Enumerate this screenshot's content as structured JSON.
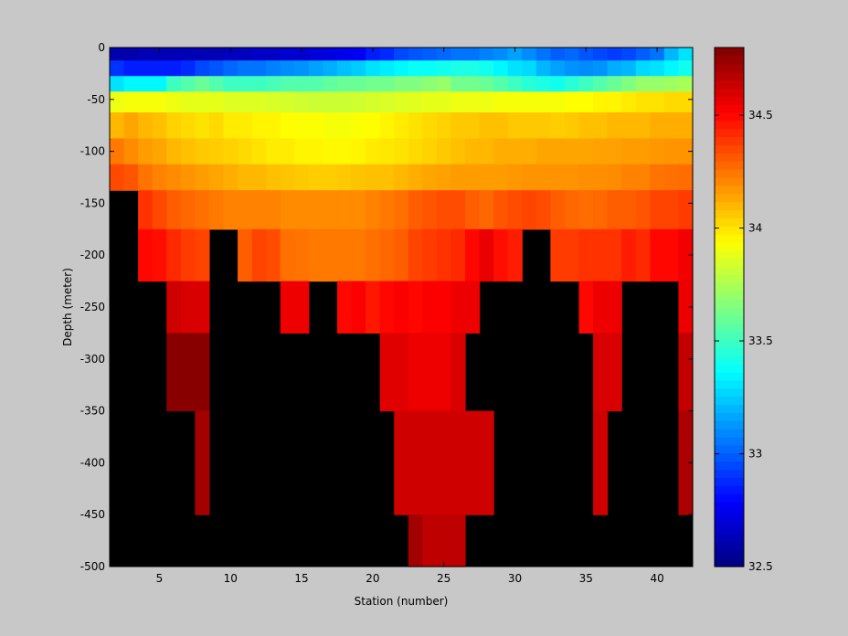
{
  "chart_data": {
    "type": "heatmap",
    "title": "",
    "xlabel": "Station (number)",
    "ylabel": "Depth (meter)",
    "xlim": [
      1.5,
      42.5
    ],
    "ylim": [
      -500,
      0
    ],
    "xticks": [
      5,
      10,
      15,
      20,
      25,
      30,
      35,
      40
    ],
    "yticks": [
      0,
      -50,
      -100,
      -150,
      -200,
      -250,
      -300,
      -350,
      -400,
      -450,
      -500
    ],
    "x_range": [
      2,
      42
    ],
    "depth_levels": [
      -5,
      -20,
      -35,
      -50,
      -75,
      -100,
      -125,
      -150,
      -200,
      -250,
      -300,
      -400,
      -500
    ],
    "no_data_color": "#000000",
    "colorbar": {
      "min": 32.5,
      "max": 34.8,
      "colormap": "jet",
      "ticks": [
        32.5,
        33,
        33.5,
        34,
        34.5
      ]
    },
    "salinity_by_depth": [
      [
        32.6,
        32.6,
        32.62,
        32.62,
        32.62,
        32.62,
        32.62,
        32.62,
        32.64,
        32.64,
        32.66,
        32.66,
        32.68,
        32.68,
        32.7,
        32.72,
        32.74,
        32.76,
        32.85,
        32.88,
        32.95,
        32.98,
        33.0,
        33.02,
        33.05,
        33.05,
        33.08,
        33.1,
        33.15,
        33.1,
        33.05,
        33.0,
        33.02,
        32.98,
        32.95,
        32.92,
        32.95,
        33.0,
        33.05,
        33.2,
        33.3
      ],
      [
        32.9,
        32.85,
        32.85,
        32.85,
        32.85,
        32.88,
        32.95,
        32.98,
        33.02,
        33.05,
        33.05,
        33.08,
        33.1,
        33.12,
        33.15,
        33.18,
        33.22,
        33.25,
        33.3,
        33.32,
        33.35,
        33.38,
        33.38,
        33.4,
        33.42,
        33.42,
        33.4,
        33.35,
        33.3,
        33.28,
        33.2,
        33.15,
        33.12,
        33.1,
        33.12,
        33.18,
        33.2,
        33.28,
        33.3,
        33.35,
        33.4
      ],
      [
        33.3,
        33.35,
        33.35,
        33.35,
        33.5,
        33.55,
        33.6,
        33.55,
        33.5,
        33.5,
        33.5,
        33.52,
        33.55,
        33.55,
        33.55,
        33.58,
        33.6,
        33.6,
        33.62,
        33.62,
        33.65,
        33.65,
        33.68,
        33.7,
        33.62,
        33.62,
        33.6,
        33.55,
        33.5,
        33.45,
        33.42,
        33.4,
        33.45,
        33.5,
        33.55,
        33.6,
        33.65,
        33.7,
        33.7,
        33.72,
        33.74
      ],
      [
        33.9,
        33.92,
        33.92,
        33.92,
        33.9,
        33.88,
        33.88,
        33.88,
        33.86,
        33.86,
        33.86,
        33.85,
        33.84,
        33.83,
        33.82,
        33.82,
        33.82,
        33.83,
        33.84,
        33.85,
        33.86,
        33.87,
        33.88,
        33.88,
        33.9,
        33.9,
        33.9,
        33.92,
        33.92,
        33.92,
        33.92,
        33.92,
        33.94,
        33.94,
        33.96,
        33.96,
        33.98,
        34.0,
        34.0,
        34.02,
        34.02
      ],
      [
        34.1,
        34.14,
        34.1,
        34.08,
        34.04,
        34.02,
        34.0,
        34.02,
        33.98,
        33.98,
        33.96,
        33.96,
        33.94,
        33.93,
        33.93,
        33.92,
        33.92,
        33.93,
        33.94,
        33.96,
        33.98,
        34.0,
        34.02,
        34.04,
        34.06,
        34.06,
        34.08,
        34.08,
        34.06,
        34.06,
        34.06,
        34.05,
        34.06,
        34.08,
        34.08,
        34.1,
        34.1,
        34.1,
        34.12,
        34.12,
        34.12
      ],
      [
        34.24,
        34.2,
        34.16,
        34.14,
        34.1,
        34.08,
        34.06,
        34.05,
        34.04,
        34.02,
        34.0,
        33.98,
        33.98,
        33.96,
        33.96,
        33.95,
        33.95,
        33.96,
        33.98,
        33.99,
        34.0,
        34.02,
        34.04,
        34.06,
        34.08,
        34.1,
        34.1,
        34.12,
        34.12,
        34.12,
        34.14,
        34.14,
        34.14,
        34.14,
        34.15,
        34.15,
        34.16,
        34.16,
        34.17,
        34.18,
        34.18
      ],
      [
        34.35,
        34.32,
        34.25,
        34.22,
        34.2,
        34.18,
        34.16,
        34.14,
        34.12,
        34.1,
        34.1,
        34.08,
        34.07,
        34.06,
        34.05,
        34.05,
        34.06,
        34.07,
        34.08,
        34.08,
        34.1,
        34.12,
        34.14,
        34.15,
        34.16,
        34.16,
        34.16,
        34.16,
        34.17,
        34.18,
        34.18,
        34.18,
        34.18,
        34.19,
        34.19,
        34.2,
        34.22,
        34.22,
        34.25,
        34.26,
        34.27
      ],
      [
        null,
        null,
        34.4,
        34.35,
        34.3,
        34.28,
        34.26,
        34.24,
        34.22,
        34.22,
        34.22,
        34.22,
        34.2,
        34.2,
        34.2,
        34.2,
        34.2,
        34.2,
        34.22,
        34.24,
        34.26,
        34.3,
        34.32,
        34.34,
        34.34,
        34.3,
        34.28,
        34.32,
        34.34,
        34.36,
        34.34,
        34.3,
        34.28,
        34.27,
        34.28,
        34.3,
        34.3,
        34.32,
        34.36,
        34.36,
        34.38
      ],
      [
        null,
        null,
        34.5,
        34.48,
        34.42,
        34.38,
        34.36,
        null,
        null,
        34.3,
        34.36,
        34.34,
        34.26,
        34.25,
        34.24,
        34.24,
        34.24,
        34.24,
        34.26,
        34.28,
        34.3,
        34.36,
        34.38,
        34.4,
        34.42,
        34.5,
        34.56,
        34.48,
        34.45,
        null,
        null,
        34.38,
        34.38,
        34.4,
        34.4,
        34.4,
        34.45,
        34.42,
        34.5,
        34.5,
        34.54
      ],
      [
        null,
        null,
        null,
        null,
        34.62,
        34.6,
        34.6,
        null,
        null,
        null,
        null,
        null,
        34.55,
        34.55,
        null,
        null,
        34.5,
        34.52,
        34.46,
        34.5,
        34.52,
        34.5,
        34.52,
        34.52,
        34.55,
        34.55,
        null,
        null,
        null,
        null,
        null,
        null,
        null,
        34.5,
        34.55,
        34.55,
        null,
        null,
        null,
        null,
        34.55
      ],
      [
        null,
        null,
        null,
        null,
        34.78,
        34.78,
        34.78,
        null,
        null,
        null,
        null,
        null,
        null,
        null,
        null,
        null,
        null,
        null,
        null,
        34.58,
        34.58,
        34.55,
        34.55,
        34.55,
        34.6,
        null,
        null,
        null,
        null,
        null,
        null,
        null,
        null,
        null,
        34.6,
        34.6,
        null,
        null,
        null,
        null,
        34.65
      ],
      [
        null,
        null,
        null,
        null,
        null,
        null,
        34.72,
        null,
        null,
        null,
        null,
        null,
        null,
        null,
        null,
        null,
        null,
        null,
        null,
        null,
        34.62,
        34.62,
        34.62,
        34.62,
        34.62,
        34.62,
        34.62,
        null,
        null,
        null,
        null,
        null,
        null,
        null,
        34.62,
        null,
        null,
        null,
        null,
        null,
        34.7
      ],
      [
        null,
        null,
        null,
        null,
        null,
        null,
        null,
        null,
        null,
        null,
        null,
        null,
        null,
        null,
        null,
        null,
        null,
        null,
        null,
        null,
        null,
        34.72,
        34.66,
        34.66,
        34.66,
        null,
        null,
        null,
        null,
        null,
        null,
        null,
        null,
        null,
        null,
        null,
        null,
        null,
        null,
        null,
        null
      ]
    ]
  }
}
